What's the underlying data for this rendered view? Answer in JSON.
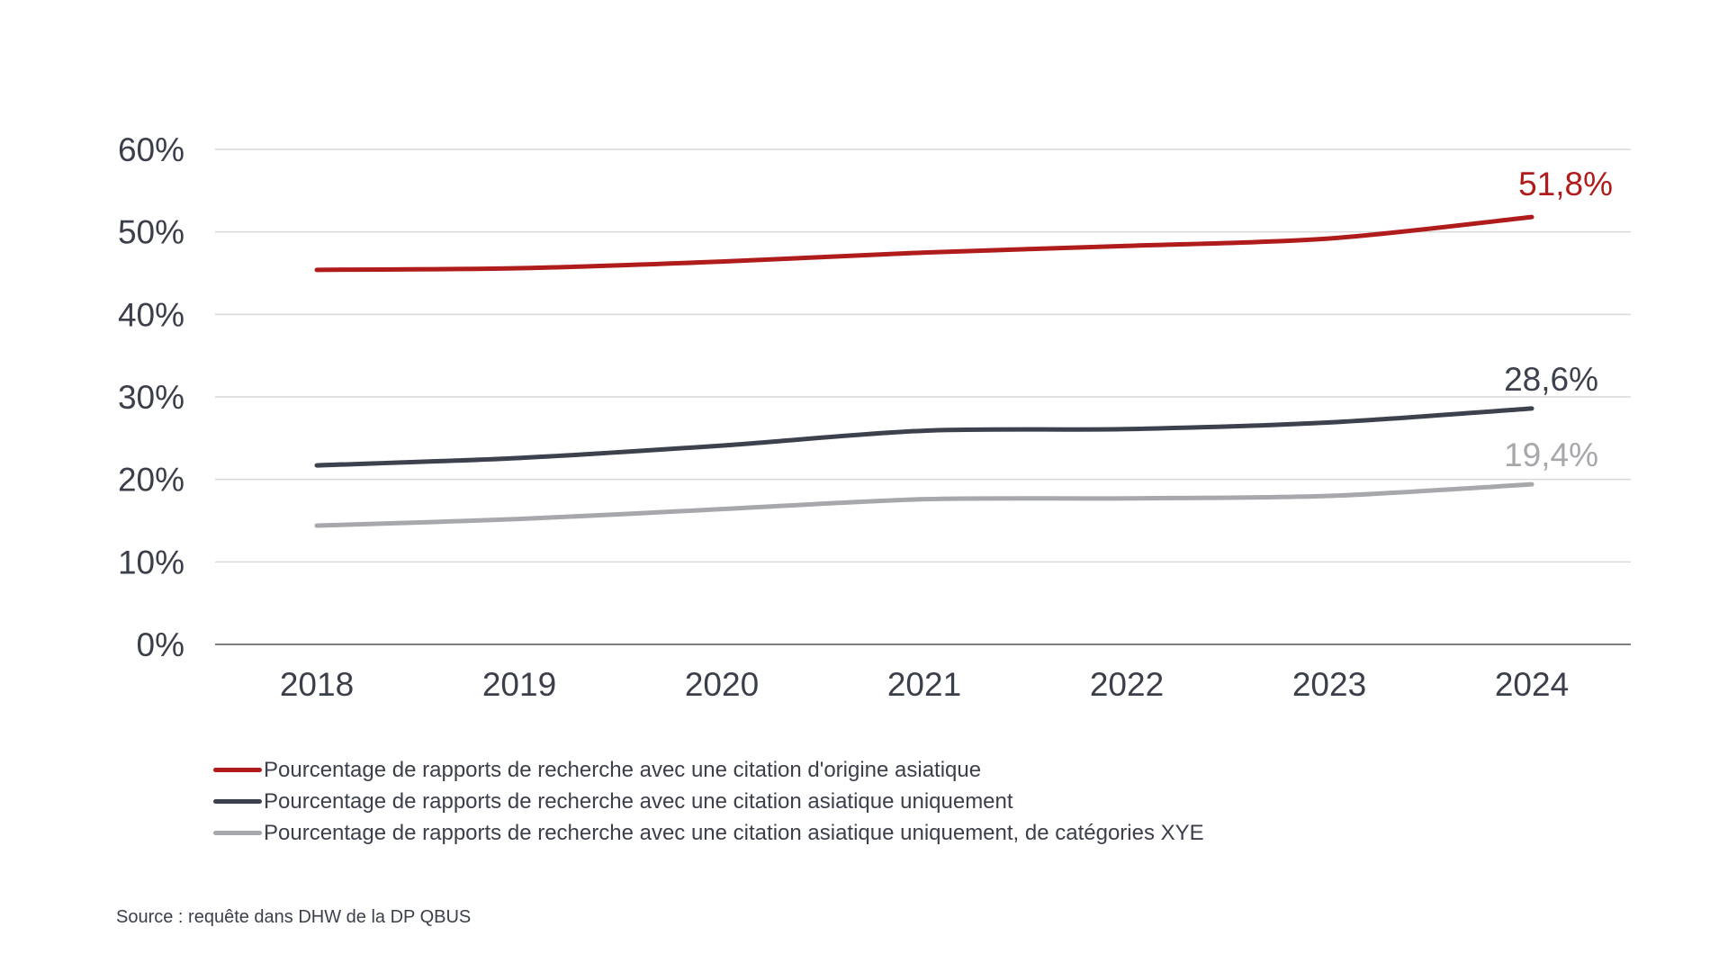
{
  "chart_data": {
    "type": "line",
    "title": "",
    "xlabel": "",
    "ylabel": "",
    "categories": [
      "2018",
      "2019",
      "2020",
      "2021",
      "2022",
      "2023",
      "2024"
    ],
    "ylim": [
      0,
      60
    ],
    "yticks": [
      0,
      10,
      20,
      30,
      40,
      50,
      60
    ],
    "ytick_labels": [
      "0%",
      "10%",
      "20%",
      "30%",
      "40%",
      "50%",
      "60%"
    ],
    "grid": true,
    "legend_position": "bottom",
    "series": [
      {
        "name": "Pourcentage de rapports de recherche avec une citation d'origine asiatique",
        "color": "#b01c1c",
        "values": [
          45.4,
          45.6,
          46.4,
          47.5,
          48.3,
          49.2,
          51.8
        ],
        "end_label": "51,8%"
      },
      {
        "name": "Pourcentage de rapports de recherche avec une citation asiatique uniquement",
        "color": "#3c414d",
        "values": [
          21.7,
          22.6,
          24.1,
          25.9,
          26.1,
          26.9,
          28.6
        ],
        "end_label": "28,6%"
      },
      {
        "name": "Pourcentage de rapports de recherche avec une citation asiatique uniquement, de catégories XYE",
        "color": "#a6a8ab",
        "values": [
          14.4,
          15.2,
          16.4,
          17.6,
          17.7,
          18.0,
          19.4
        ],
        "end_label": "19,4%"
      }
    ]
  },
  "source": "Source : requête dans DHW de la DP QBUS"
}
